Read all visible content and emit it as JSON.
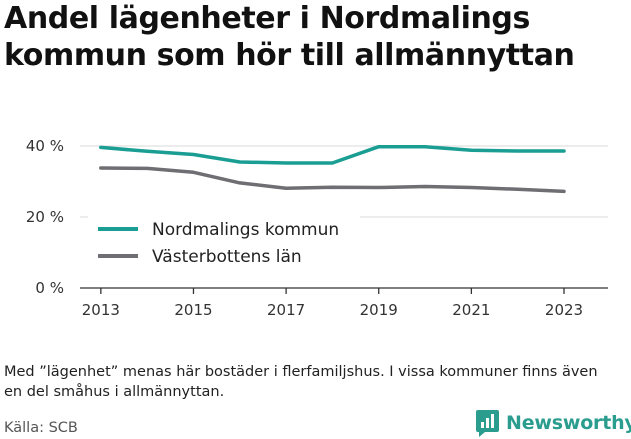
{
  "title": "Andel lägenheter i Nordmalings kommun som hör till allmännyttan",
  "note": "Med ”lägenhet” menas här bostäder i flerfamiljshus. I vissa kommuner finns även en del småhus i allmännyttan.",
  "source": "Källa: SCB",
  "brand": {
    "name": "Newsworthy",
    "icon": "newsworthy-logo-icon"
  },
  "chart_data": {
    "type": "line",
    "title": "Andel lägenheter i Nordmalings kommun som hör till allmännyttan",
    "xlabel": "",
    "ylabel": "",
    "x": [
      2013,
      2014,
      2015,
      2016,
      2017,
      2018,
      2019,
      2020,
      2021,
      2022,
      2023
    ],
    "x_ticks": [
      "2013",
      "2015",
      "2017",
      "2019",
      "2021",
      "2023"
    ],
    "y_ticks": [
      "0 %",
      "20 %",
      "40 %"
    ],
    "ylim": [
      0,
      40
    ],
    "grid": "horizontal",
    "legend_position": "bottom-left",
    "series": [
      {
        "name": "Nordmalings kommun",
        "color": "#1a9e94",
        "values": [
          39.6,
          38.5,
          37.6,
          35.5,
          35.2,
          35.2,
          39.8,
          39.8,
          38.8,
          38.6,
          38.6
        ]
      },
      {
        "name": "Västerbottens län",
        "color": "#6e6e73",
        "values": [
          33.8,
          33.7,
          32.6,
          29.6,
          28.1,
          28.4,
          28.3,
          28.6,
          28.3,
          27.8,
          27.2
        ]
      }
    ]
  }
}
